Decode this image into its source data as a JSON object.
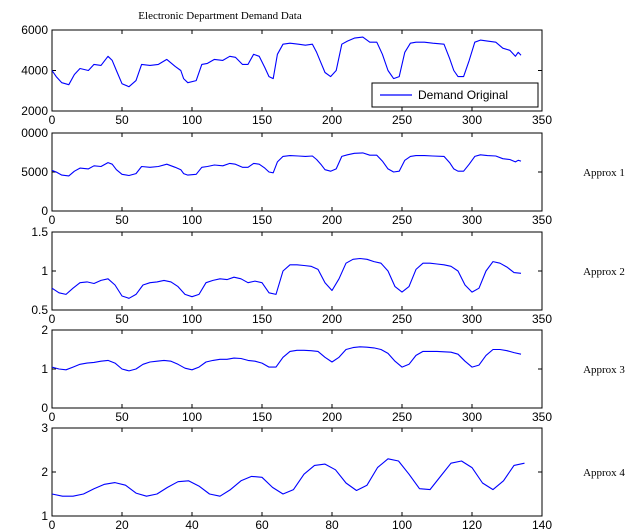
{
  "figure": {
    "title": "Electronic Department Demand Data",
    "background": "#ffffff",
    "line_color": "#0000ff"
  },
  "chart_data": [
    {
      "type": "line",
      "title": "Electronic Department Demand Data",
      "side_label": "",
      "legend": {
        "label": "Demand Original",
        "placement": "bottom-right"
      },
      "xlim": [
        0,
        350
      ],
      "ylim": [
        2000,
        6000
      ],
      "xticks": [
        "0",
        "50",
        "100",
        "150",
        "200",
        "250",
        "300",
        "350"
      ],
      "yticks": [
        "2000",
        "4000",
        "6000"
      ],
      "series": [
        {
          "name": "Demand Original",
          "x": [
            0,
            3,
            7,
            12,
            16,
            20,
            26,
            30,
            35,
            40,
            43,
            46,
            50,
            55,
            60,
            64,
            70,
            76,
            82,
            88,
            92,
            94,
            97,
            103,
            107,
            111,
            116,
            122,
            127,
            131,
            136,
            140,
            144,
            148,
            152,
            155,
            158,
            161,
            165,
            170,
            176,
            181,
            186,
            189,
            192,
            195,
            199,
            203,
            207,
            211,
            216,
            222,
            227,
            232,
            236,
            240,
            244,
            248,
            252,
            256,
            260,
            266,
            272,
            280,
            284,
            287,
            290,
            294,
            298,
            302,
            306,
            311,
            317,
            322,
            327,
            331,
            333,
            335
          ],
          "values": [
            4000,
            3700,
            3400,
            3300,
            3800,
            4100,
            4000,
            4300,
            4250,
            4700,
            4500,
            4000,
            3350,
            3200,
            3500,
            4300,
            4250,
            4300,
            4550,
            4200,
            4000,
            3600,
            3400,
            3500,
            4300,
            4350,
            4550,
            4500,
            4700,
            4650,
            4300,
            4300,
            4800,
            4700,
            4150,
            3700,
            3600,
            4800,
            5300,
            5350,
            5300,
            5250,
            5300,
            4900,
            4400,
            3900,
            3700,
            4000,
            5300,
            5450,
            5600,
            5650,
            5400,
            5400,
            4800,
            4000,
            3600,
            3700,
            4900,
            5350,
            5400,
            5400,
            5350,
            5300,
            4600,
            4000,
            3700,
            3700,
            4500,
            5400,
            5500,
            5450,
            5400,
            5100,
            5000,
            4700,
            4900,
            4750
          ]
        }
      ]
    },
    {
      "type": "line",
      "title": "",
      "side_label": "Approx 1",
      "xlim": [
        0,
        350
      ],
      "ylim": [
        0,
        10000
      ],
      "xticks": [
        "0",
        "50",
        "100",
        "150",
        "200",
        "250",
        "300",
        "350"
      ],
      "yticks": [
        "0",
        "5000",
        "0000"
      ],
      "series": [
        {
          "name": "",
          "x": [
            0,
            3,
            7,
            12,
            16,
            20,
            26,
            30,
            35,
            40,
            43,
            46,
            50,
            55,
            60,
            64,
            70,
            76,
            82,
            88,
            92,
            94,
            97,
            103,
            107,
            111,
            116,
            122,
            127,
            131,
            136,
            140,
            144,
            148,
            152,
            155,
            158,
            161,
            165,
            170,
            176,
            181,
            186,
            189,
            192,
            195,
            199,
            203,
            207,
            211,
            216,
            222,
            227,
            232,
            236,
            240,
            244,
            248,
            252,
            256,
            260,
            266,
            272,
            280,
            284,
            287,
            290,
            294,
            298,
            302,
            306,
            311,
            317,
            322,
            327,
            331,
            333,
            335
          ],
          "values": [
            5200,
            5000,
            4600,
            4500,
            5100,
            5500,
            5400,
            5800,
            5700,
            6200,
            6000,
            5300,
            4700,
            4550,
            4800,
            5700,
            5600,
            5700,
            6000,
            5600,
            5300,
            4800,
            4600,
            4700,
            5600,
            5700,
            5900,
            5800,
            6100,
            6000,
            5600,
            5600,
            6100,
            6000,
            5500,
            5000,
            4900,
            6300,
            7000,
            7100,
            7050,
            7000,
            7050,
            6600,
            6000,
            5300,
            5100,
            5400,
            7000,
            7200,
            7400,
            7450,
            7150,
            7150,
            6400,
            5400,
            5000,
            5100,
            6500,
            7000,
            7100,
            7100,
            7050,
            7000,
            6200,
            5400,
            5100,
            5100,
            6000,
            7000,
            7200,
            7100,
            7050,
            6700,
            6600,
            6300,
            6500,
            6400
          ]
        }
      ]
    },
    {
      "type": "line",
      "title": "",
      "side_label": "Approx 2",
      "xlim": [
        0,
        350
      ],
      "ylim": [
        0.5,
        1.5
      ],
      "xticks": [
        "0",
        "50",
        "100",
        "150",
        "200",
        "250",
        "300",
        "350"
      ],
      "yticks": [
        "0.5",
        "1",
        "1.5"
      ],
      "series": [
        {
          "name": "",
          "x": [
            0,
            5,
            10,
            15,
            20,
            25,
            30,
            35,
            40,
            45,
            50,
            55,
            60,
            65,
            70,
            75,
            80,
            85,
            90,
            95,
            100,
            105,
            110,
            115,
            120,
            125,
            130,
            135,
            140,
            145,
            150,
            155,
            160,
            165,
            170,
            175,
            180,
            185,
            190,
            195,
            200,
            205,
            210,
            215,
            220,
            225,
            230,
            235,
            240,
            245,
            250,
            255,
            260,
            265,
            270,
            275,
            280,
            285,
            290,
            295,
            300,
            305,
            310,
            315,
            320,
            325,
            330,
            335
          ],
          "values": [
            0.78,
            0.72,
            0.7,
            0.78,
            0.85,
            0.86,
            0.84,
            0.88,
            0.9,
            0.82,
            0.68,
            0.65,
            0.7,
            0.82,
            0.85,
            0.86,
            0.88,
            0.86,
            0.8,
            0.7,
            0.67,
            0.7,
            0.85,
            0.88,
            0.9,
            0.89,
            0.92,
            0.9,
            0.85,
            0.87,
            0.85,
            0.72,
            0.7,
            1.0,
            1.08,
            1.08,
            1.07,
            1.06,
            1.02,
            0.85,
            0.75,
            0.9,
            1.1,
            1.15,
            1.16,
            1.15,
            1.12,
            1.1,
            1.0,
            0.8,
            0.73,
            0.8,
            1.02,
            1.1,
            1.1,
            1.09,
            1.08,
            1.06,
            1.0,
            0.82,
            0.73,
            0.78,
            1.0,
            1.12,
            1.1,
            1.05,
            0.98,
            0.97
          ]
        }
      ]
    },
    {
      "type": "line",
      "title": "",
      "side_label": "Approx 3",
      "xlim": [
        0,
        350
      ],
      "ylim": [
        0,
        2
      ],
      "xticks": [
        "0",
        "50",
        "100",
        "150",
        "200",
        "250",
        "300",
        "350"
      ],
      "yticks": [
        "0",
        "1",
        "2"
      ],
      "series": [
        {
          "name": "",
          "x": [
            0,
            5,
            10,
            15,
            20,
            25,
            30,
            35,
            40,
            45,
            50,
            55,
            60,
            65,
            70,
            75,
            80,
            85,
            90,
            95,
            100,
            105,
            110,
            115,
            120,
            125,
            130,
            135,
            140,
            145,
            150,
            155,
            160,
            165,
            170,
            175,
            180,
            185,
            190,
            195,
            200,
            205,
            210,
            215,
            220,
            225,
            230,
            235,
            240,
            245,
            250,
            255,
            260,
            265,
            270,
            275,
            280,
            285,
            290,
            295,
            300,
            305,
            310,
            315,
            320,
            325,
            330,
            335
          ],
          "values": [
            1.05,
            1.0,
            0.98,
            1.05,
            1.12,
            1.15,
            1.17,
            1.2,
            1.22,
            1.15,
            1.0,
            0.95,
            1.0,
            1.12,
            1.18,
            1.2,
            1.22,
            1.2,
            1.12,
            1.02,
            0.98,
            1.05,
            1.18,
            1.22,
            1.25,
            1.25,
            1.28,
            1.27,
            1.22,
            1.2,
            1.15,
            1.05,
            1.05,
            1.3,
            1.45,
            1.48,
            1.48,
            1.47,
            1.45,
            1.3,
            1.18,
            1.3,
            1.5,
            1.55,
            1.57,
            1.56,
            1.54,
            1.5,
            1.4,
            1.2,
            1.05,
            1.12,
            1.35,
            1.45,
            1.45,
            1.45,
            1.44,
            1.43,
            1.38,
            1.2,
            1.05,
            1.1,
            1.35,
            1.5,
            1.5,
            1.47,
            1.42,
            1.38
          ]
        }
      ]
    },
    {
      "type": "line",
      "title": "",
      "side_label": "Approx 4",
      "xlim": [
        0,
        140
      ],
      "ylim": [
        1,
        3
      ],
      "xticks": [
        "0",
        "20",
        "40",
        "60",
        "80",
        "100",
        "120",
        "140"
      ],
      "yticks": [
        "1",
        "2",
        "3"
      ],
      "series": [
        {
          "name": "",
          "x": [
            0,
            3,
            6,
            9,
            12,
            15,
            18,
            21,
            24,
            27,
            30,
            33,
            36,
            39,
            42,
            45,
            48,
            51,
            54,
            57,
            60,
            63,
            66,
            69,
            72,
            75,
            78,
            81,
            84,
            87,
            90,
            93,
            96,
            99,
            102,
            105,
            108,
            111,
            114,
            117,
            120,
            123,
            126,
            129,
            132,
            135
          ],
          "values": [
            1.5,
            1.45,
            1.45,
            1.5,
            1.62,
            1.72,
            1.76,
            1.7,
            1.52,
            1.45,
            1.5,
            1.65,
            1.78,
            1.8,
            1.68,
            1.5,
            1.45,
            1.6,
            1.8,
            1.9,
            1.88,
            1.65,
            1.5,
            1.6,
            1.95,
            2.15,
            2.18,
            2.05,
            1.75,
            1.58,
            1.7,
            2.1,
            2.3,
            2.25,
            1.95,
            1.62,
            1.6,
            1.9,
            2.2,
            2.25,
            2.1,
            1.75,
            1.6,
            1.8,
            2.15,
            2.2
          ]
        }
      ]
    }
  ]
}
